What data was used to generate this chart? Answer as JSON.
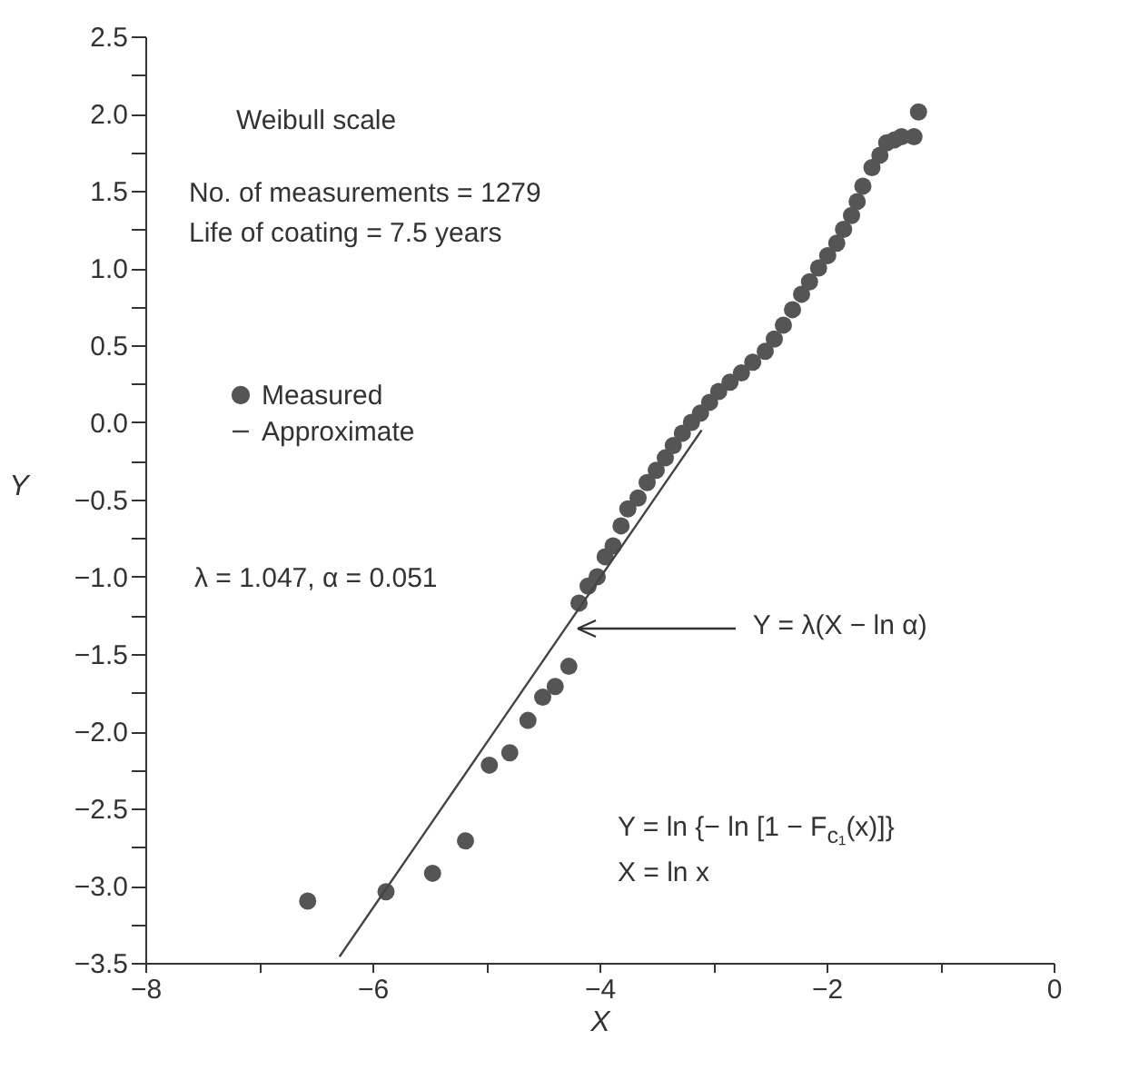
{
  "chart_data": {
    "type": "scatter",
    "xlabel": "X",
    "ylabel": "Y",
    "annotations": [
      "Weibull scale",
      "No. of measurements = 1279",
      "Life of coating = 7.5 years",
      "λ = 1.047, α = 0.051",
      {
        "text": "Y = λ(X − ln α)",
        "x": -4.25,
        "y": -1.33
      },
      "Y = ln {− ln [1 − F$_{c₁}$(x)]}",
      "X = ln x"
    ],
    "series": [
      {
        "name": "Measured",
        "marker": "circle",
        "color": "#555555",
        "x": [
          -6.57,
          -5.88,
          -5.47,
          -5.18,
          -4.97,
          -4.79,
          -4.63,
          -4.5,
          -4.39,
          -4.27,
          -4.18,
          -4.1,
          -4.02,
          -3.95,
          -3.88,
          -3.81,
          -3.75,
          -3.66,
          -3.58,
          -3.5,
          -3.42,
          -3.35,
          -3.27,
          -3.19,
          -3.11,
          -3.03,
          -2.95,
          -2.85,
          -2.75,
          -2.65,
          -2.54,
          -2.46,
          -2.38,
          -2.3,
          -2.22,
          -2.15,
          -2.07,
          -1.99,
          -1.91,
          -1.85,
          -1.78,
          -1.73,
          -1.68,
          -1.6,
          -1.53,
          -1.47,
          -1.4,
          -1.34,
          -1.23,
          -1.19
        ],
        "values": [
          -3.1,
          -3.04,
          -2.92,
          -2.71,
          -2.22,
          -2.14,
          -1.93,
          -1.78,
          -1.71,
          -1.58,
          -1.17,
          -1.06,
          -1.0,
          -0.87,
          -0.8,
          -0.67,
          -0.56,
          -0.49,
          -0.39,
          -0.31,
          -0.23,
          -0.15,
          -0.07,
          0.0,
          0.06,
          0.13,
          0.2,
          0.26,
          0.32,
          0.39,
          0.46,
          0.54,
          0.63,
          0.73,
          0.83,
          0.91,
          1.0,
          1.08,
          1.16,
          1.25,
          1.34,
          1.43,
          1.53,
          1.65,
          1.73,
          1.81,
          1.83,
          1.85,
          1.85,
          2.01
        ]
      },
      {
        "name": "Approximate",
        "type": "line",
        "color": "#444444",
        "x": [
          -6.29,
          -3.1
        ],
        "values": [
          -3.46,
          -0.05
        ]
      }
    ],
    "xlim": [
      -8,
      0
    ],
    "ylim": [
      -3.5,
      2.5
    ],
    "xticks": [
      {
        "value": -8,
        "label": "−8"
      },
      {
        "value": -7,
        "label": null
      },
      {
        "value": -6,
        "label": "−6"
      },
      {
        "value": -5,
        "label": null
      },
      {
        "value": -4,
        "label": "−4"
      },
      {
        "value": -3,
        "label": null
      },
      {
        "value": -2,
        "label": "−2"
      },
      {
        "value": -1,
        "label": null
      },
      0
    ],
    "yticks": [
      {
        "value": -3.5,
        "label": "−3.5"
      },
      {
        "value": -3.25,
        "label": null
      },
      {
        "value": -3,
        "label": "−3.0"
      },
      {
        "value": -2.75,
        "label": null
      },
      {
        "value": -2.5,
        "label": "−2.5"
      },
      {
        "value": -2.25,
        "label": null
      },
      {
        "value": -2,
        "label": "−2.0"
      },
      {
        "value": -1.75,
        "label": null
      },
      {
        "value": -1.5,
        "label": "−1.5"
      },
      {
        "value": -1.25,
        "label": null
      },
      {
        "value": -1,
        "label": "−1.0"
      },
      {
        "value": -0.75,
        "label": null
      },
      {
        "value": -0.5,
        "label": "−0.5"
      },
      {
        "value": -0.25,
        "label": null
      },
      {
        "value": 0,
        "label": "0.0"
      },
      {
        "value": 0.25,
        "label": null
      },
      {
        "value": 0.5,
        "label": "0.5"
      },
      {
        "value": 0.75,
        "label": null
      },
      {
        "value": 1,
        "label": "1.0"
      },
      {
        "value": 1.25,
        "label": null
      },
      {
        "value": 1.5,
        "label": "1.5"
      },
      {
        "value": 1.75,
        "label": null
      },
      {
        "value": 2,
        "label": "2.0"
      },
      {
        "value": 2.25,
        "label": null
      },
      {
        "value": 2.5,
        "label": "2.5"
      }
    ],
    "legend": "left",
    "line_style": "solid"
  }
}
